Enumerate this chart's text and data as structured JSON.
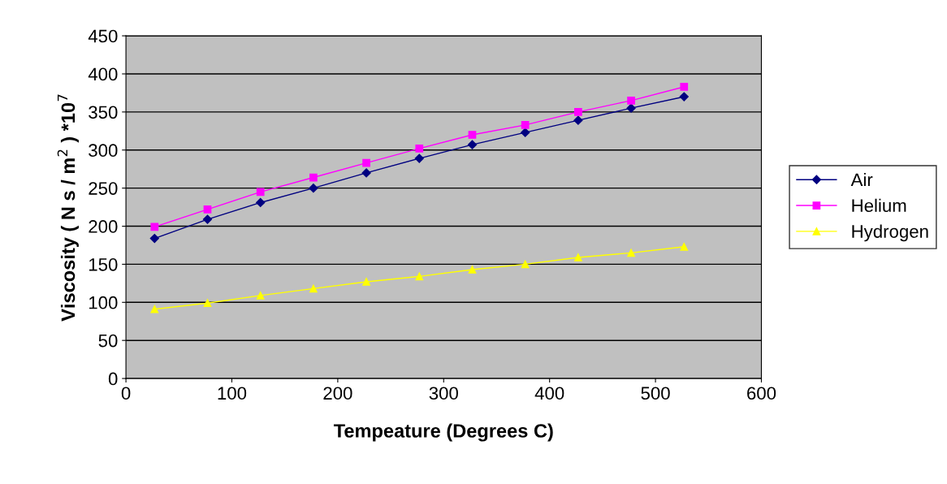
{
  "chart_data": {
    "type": "line",
    "xlabel": "Tempeature (Degrees C)",
    "ylabel": "Viscosity ( N s / m$^{2}$ ) *10$^{7}$",
    "x": [
      27,
      77,
      127,
      177,
      227,
      277,
      327,
      377,
      427,
      477,
      527
    ],
    "series": [
      {
        "name": "Air",
        "color": "#000080",
        "marker": "diamond",
        "values": [
          184,
          209,
          231,
          250,
          270,
          289,
          307,
          323,
          339,
          355,
          370
        ]
      },
      {
        "name": "Helium",
        "color": "#ff00ff",
        "marker": "square",
        "values": [
          199,
          222,
          245,
          264,
          283,
          302,
          320,
          333,
          350,
          365,
          383
        ]
      },
      {
        "name": "Hydrogen",
        "color": "#ffff00",
        "marker": "triangle",
        "values": [
          91,
          99,
          109,
          118,
          127,
          134,
          143,
          150,
          159,
          165,
          173
        ]
      }
    ],
    "xlim": [
      0,
      600
    ],
    "xticks": [
      0,
      100,
      200,
      300,
      400,
      500,
      600
    ],
    "ylim": [
      0,
      450
    ],
    "yticks": [
      0,
      50,
      100,
      150,
      200,
      250,
      300,
      350,
      400,
      450
    ],
    "grid": "y",
    "legend": "right",
    "line_style": "solid"
  }
}
